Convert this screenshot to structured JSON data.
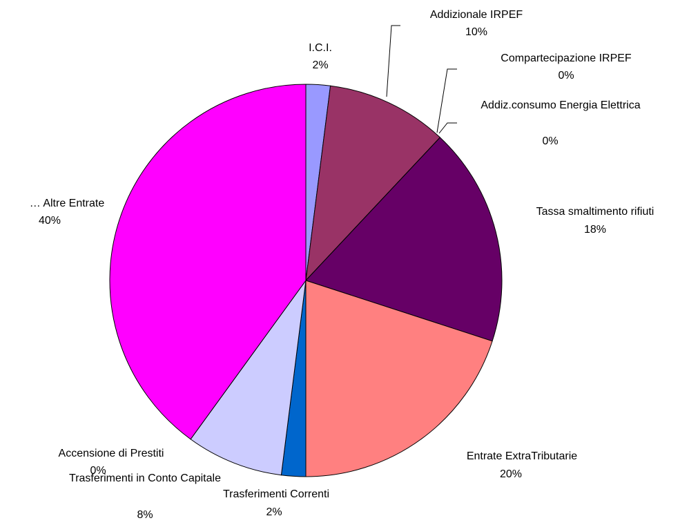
{
  "chart_data": {
    "type": "pie",
    "categories": [
      "I.C.I.",
      "Addizionale IRPEF",
      "Compartecipazione IRPEF",
      "Addiz.consumo Energia Elettrica",
      "Tassa smaltimento rifiuti",
      "Entrate ExtraTributarie",
      "Trasferimenti Correnti",
      "Trasferimenti in Conto Capitale",
      "Accensione di Prestiti",
      "… Altre Entrate"
    ],
    "values": [
      2,
      10,
      0,
      0,
      18,
      20,
      2,
      8,
      0,
      40
    ],
    "value_labels": [
      "2%",
      "10%",
      "0%",
      "0%",
      "18%",
      "20%",
      "2%",
      "8%",
      "0%",
      "40%"
    ],
    "colors": [
      "#9999ff",
      "#993366",
      "#ffffcc",
      "#ccffff",
      "#660066",
      "#ff8080",
      "#0066cc",
      "#ccccff",
      "#000080",
      "#ff00ff"
    ]
  }
}
